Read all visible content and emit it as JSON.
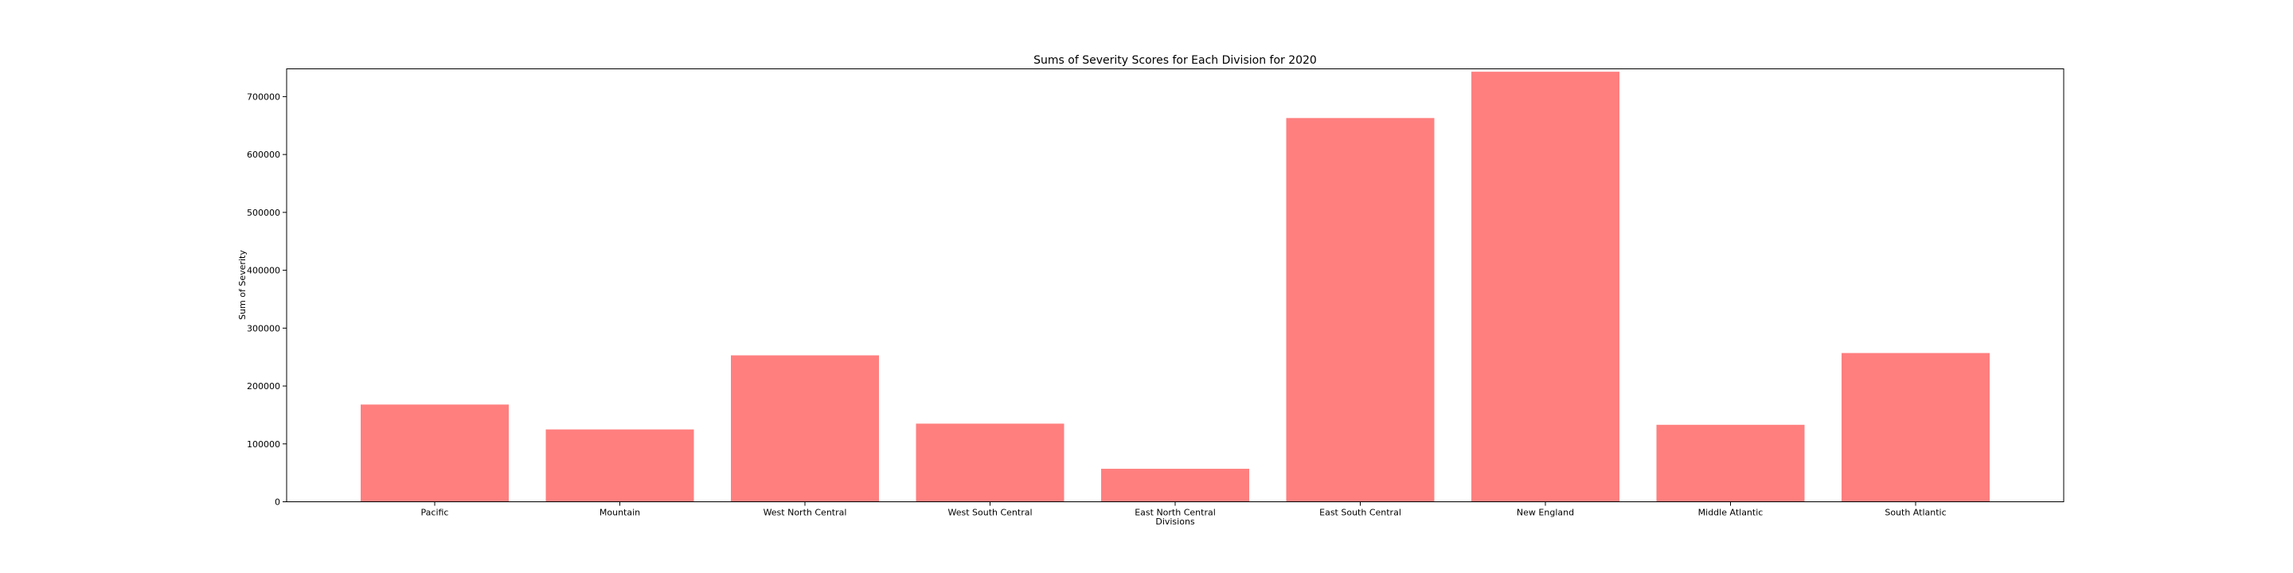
{
  "chart_data": {
    "type": "bar",
    "title": "Sums of Severity Scores for Each Division for 2020",
    "xlabel": "Divisions",
    "ylabel": "Sum of Severity",
    "categories": [
      "Pacific",
      "Mountain",
      "West North Central",
      "West South Central",
      "East North Central",
      "East South Central",
      "New England",
      "Middle Atlantic",
      "South Atlantic"
    ],
    "values": [
      168000,
      125000,
      253000,
      135000,
      57000,
      663000,
      743000,
      133000,
      257000
    ],
    "ylim": [
      0,
      748000
    ],
    "yticks": [
      0,
      100000,
      200000,
      300000,
      400000,
      500000,
      600000,
      700000
    ],
    "bar_color": "#ff7f7f",
    "grid": false,
    "legend": "none"
  }
}
